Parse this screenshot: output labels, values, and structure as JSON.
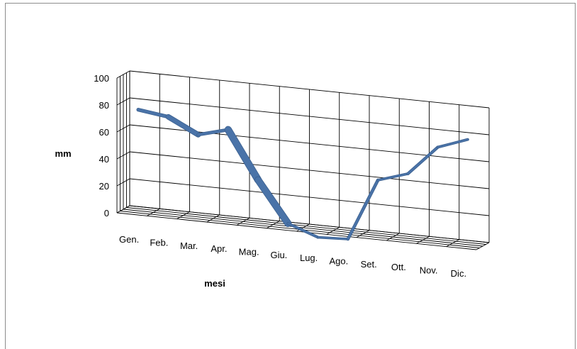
{
  "chart_data": {
    "type": "line",
    "style": "3d-line",
    "title": "",
    "xlabel": "mesi",
    "ylabel": "mm",
    "categories": [
      "Gen.",
      "Feb.",
      "Mar.",
      "Apr.",
      "Mag.",
      "Giu.",
      "Lug.",
      "Ago.",
      "Set.",
      "Ott.",
      "Nov.",
      "Dic."
    ],
    "series": [
      {
        "values": [
          75,
          72,
          61,
          67,
          32,
          2,
          -6,
          -5,
          41,
          48,
          70,
          78
        ]
      }
    ],
    "ylim": [
      0,
      100
    ],
    "yticks": [
      0,
      20,
      40,
      60,
      80,
      100
    ],
    "grid": true,
    "legend": "none",
    "colors": {
      "line": "#4a73a8",
      "line_dark": "#3a5f8e",
      "grid": "#000000"
    }
  }
}
